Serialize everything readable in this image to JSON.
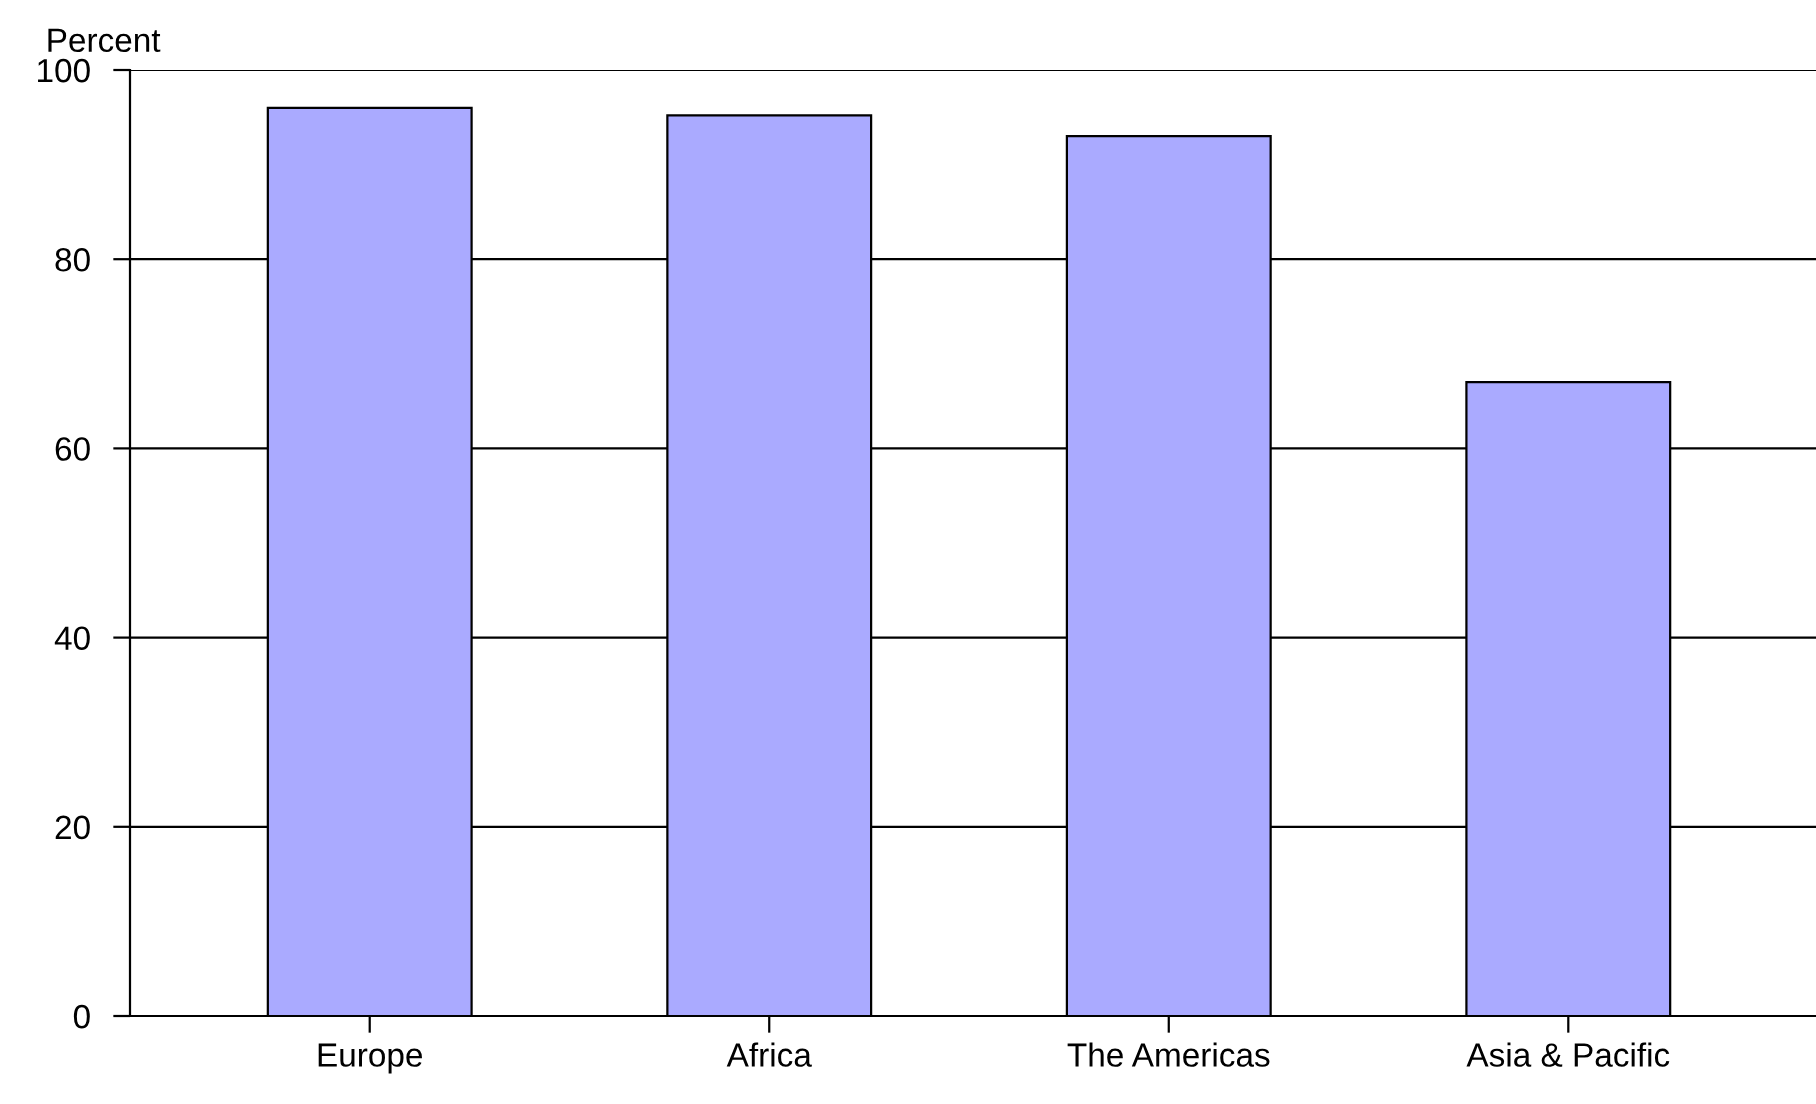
{
  "chart_data": {
    "type": "bar",
    "ylabel": "Percent",
    "categories": [
      "Europe",
      "Africa",
      "The Americas",
      "Asia & Pacific"
    ],
    "values": [
      96,
      95.2,
      93,
      67
    ],
    "color": "#aaaaff",
    "ylim": [
      0,
      100
    ],
    "yticks": [
      0,
      20,
      40,
      60,
      80,
      100
    ],
    "grid": "y"
  }
}
